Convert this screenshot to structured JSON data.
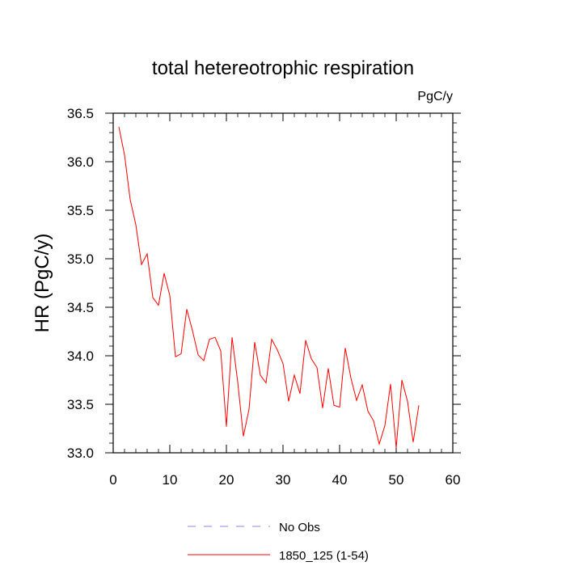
{
  "chart_data": {
    "type": "line",
    "title": "total hetereotrophic respiration",
    "units_label": "PgC/y",
    "xlabel": "",
    "ylabel": "HR  (PgC/y)",
    "xlim": [
      0,
      60
    ],
    "ylim": [
      33.0,
      36.5
    ],
    "x_ticks": [
      0,
      10,
      20,
      30,
      40,
      50,
      60
    ],
    "y_ticks": [
      33.0,
      33.5,
      34.0,
      34.5,
      35.0,
      35.5,
      36.0,
      36.5
    ],
    "y_tick_labels": [
      "33.0",
      "33.5",
      "34.0",
      "34.5",
      "35.0",
      "35.5",
      "36.0",
      "36.5"
    ],
    "grid": false,
    "series": [
      {
        "name": "1850_125 (1-54)",
        "color": "#ff0000",
        "style": "solid",
        "x": [
          1,
          2,
          3,
          4,
          5,
          6,
          7,
          8,
          9,
          10,
          11,
          12,
          13,
          14,
          15,
          16,
          17,
          18,
          19,
          20,
          21,
          22,
          23,
          24,
          25,
          26,
          27,
          28,
          29,
          30,
          31,
          32,
          33,
          34,
          35,
          36,
          37,
          38,
          39,
          40,
          41,
          42,
          43,
          44,
          45,
          46,
          47,
          48,
          49,
          50,
          51,
          52,
          53,
          54
        ],
        "values": [
          36.36,
          36.07,
          35.61,
          35.35,
          34.94,
          35.05,
          34.6,
          34.52,
          34.85,
          34.62,
          33.99,
          34.02,
          34.48,
          34.26,
          34.01,
          33.95,
          34.17,
          34.19,
          34.05,
          33.27,
          34.19,
          33.73,
          33.17,
          33.45,
          34.14,
          33.8,
          33.72,
          34.17,
          34.06,
          33.92,
          33.53,
          33.8,
          33.61,
          34.16,
          33.97,
          33.88,
          33.46,
          33.87,
          33.49,
          33.47,
          34.08,
          33.77,
          33.54,
          33.7,
          33.43,
          33.33,
          33.09,
          33.28,
          33.71,
          33.05,
          33.75,
          33.53,
          33.11,
          33.49
        ]
      },
      {
        "name": "No Obs",
        "color": "#8a8ae8",
        "style": "dashed",
        "x": [],
        "values": []
      }
    ],
    "legend": {
      "placement": "bottom",
      "entries": [
        "No Obs",
        "1850_125 (1-54)"
      ]
    }
  }
}
